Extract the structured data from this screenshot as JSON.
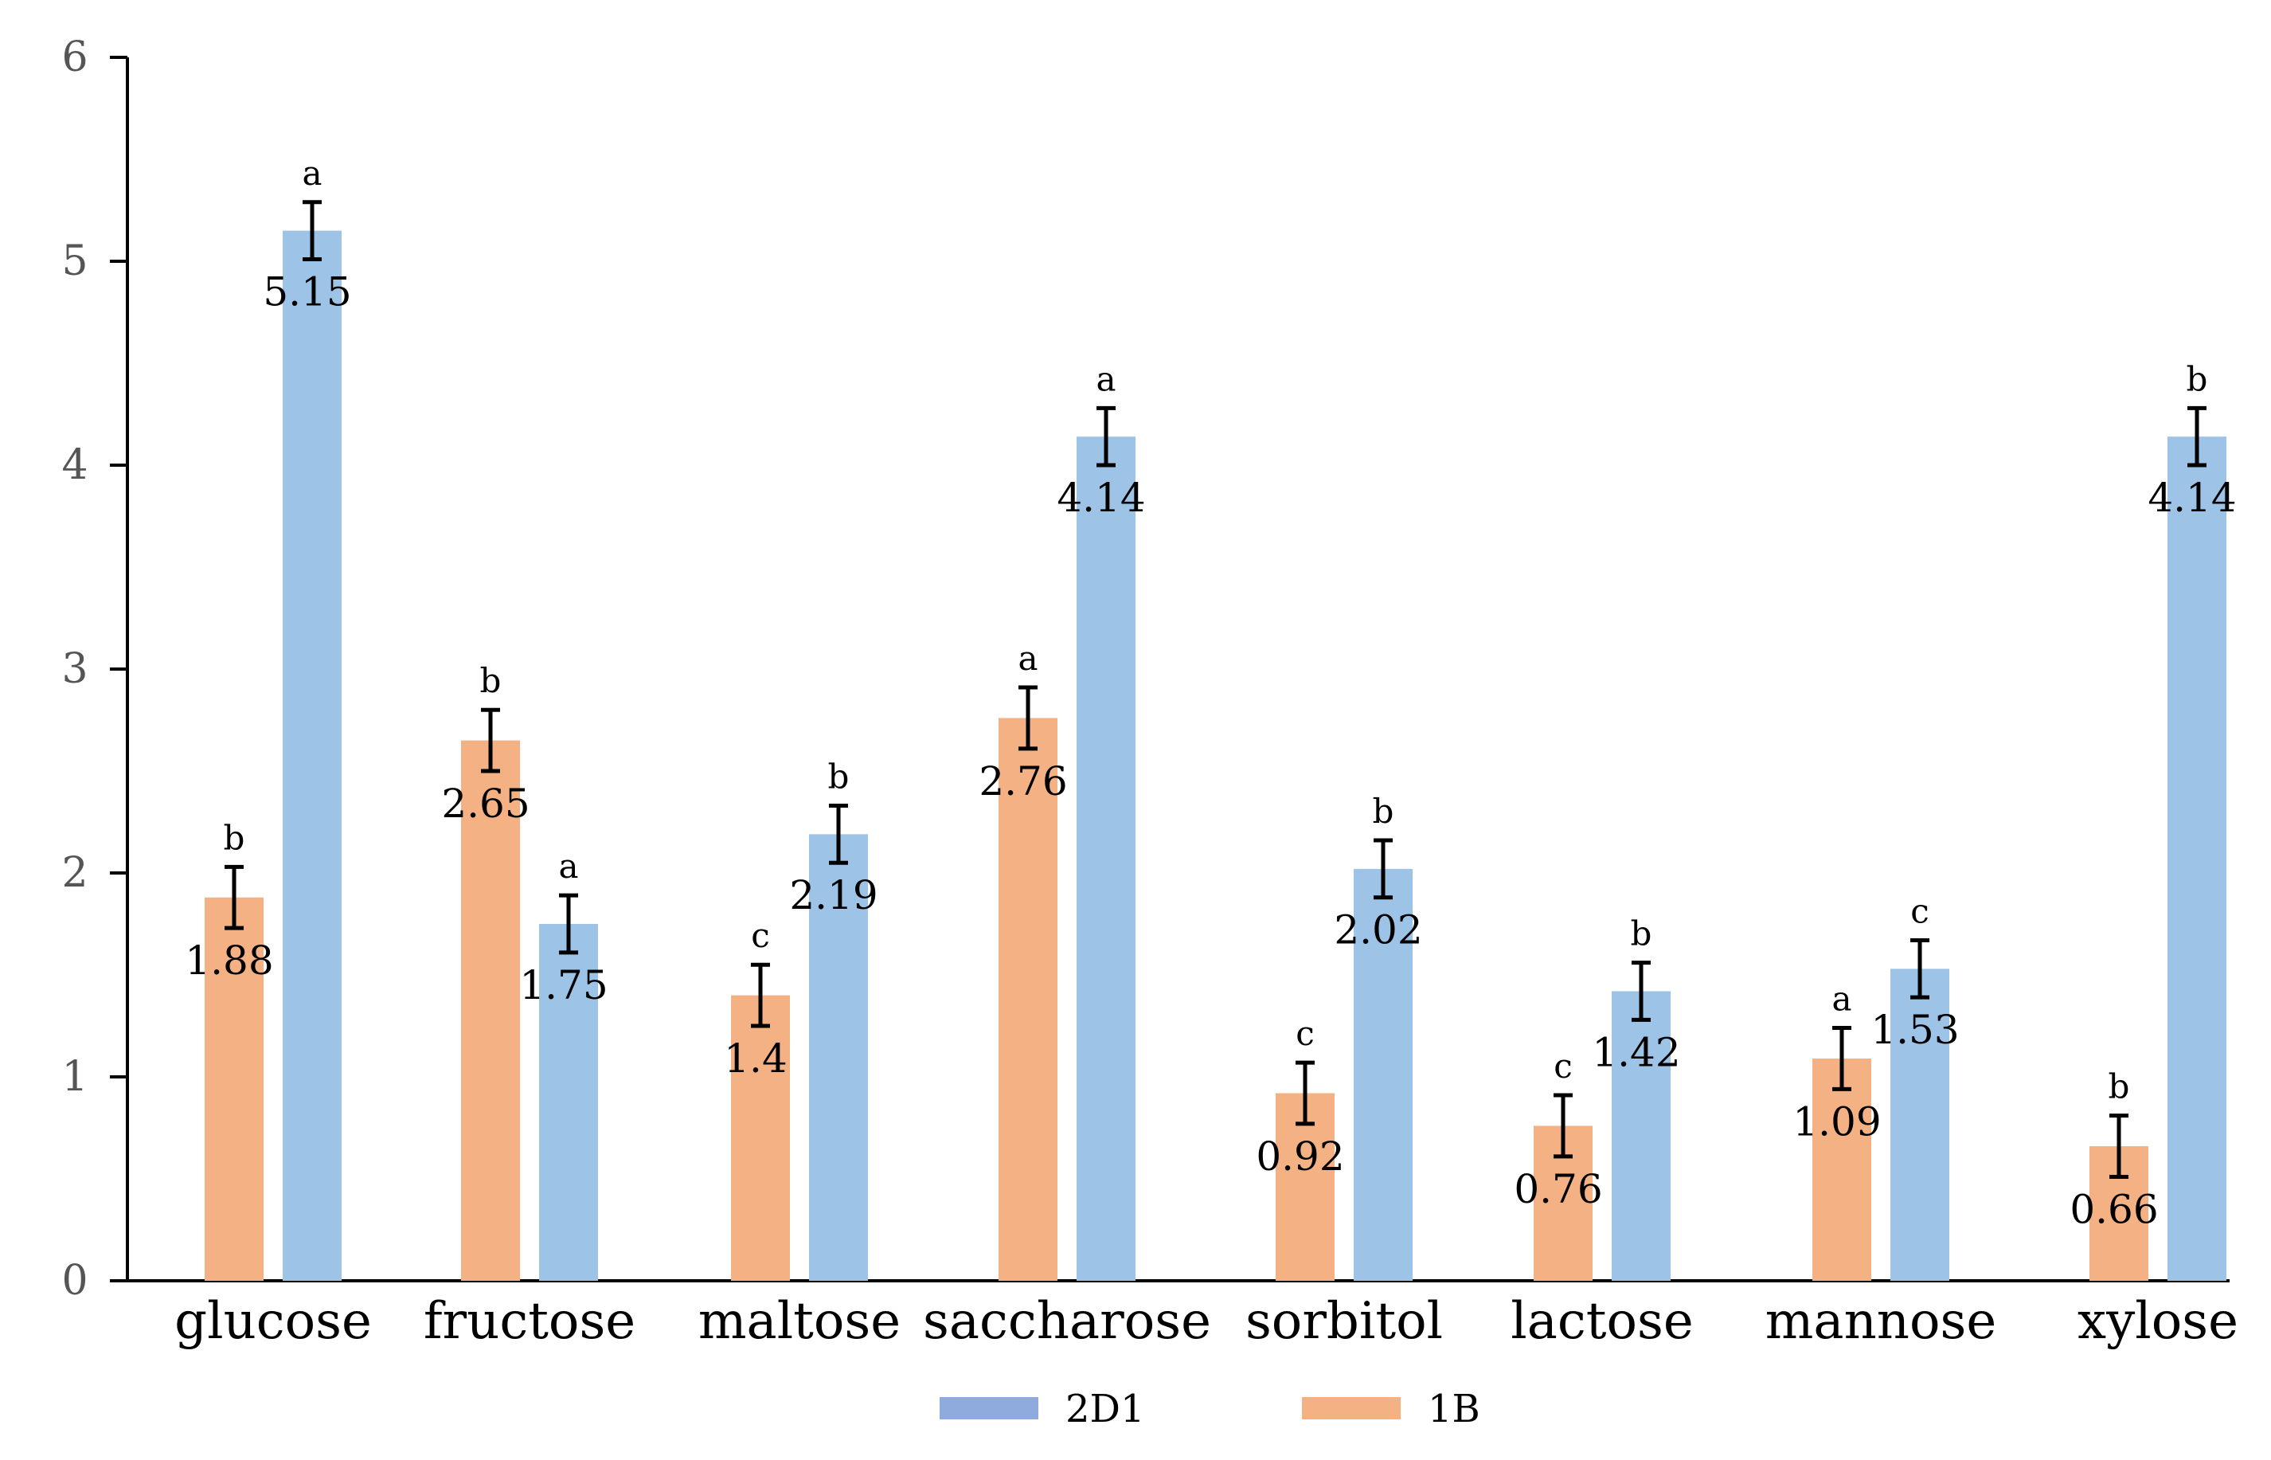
{
  "chart_data": {
    "type": "bar",
    "title": "",
    "xlabel": "",
    "ylabel": "",
    "ylim": [
      0,
      6
    ],
    "yticks": [
      0,
      1,
      2,
      3,
      4,
      5,
      6
    ],
    "grid": false,
    "legend_position": "bottom",
    "categories": [
      "glucose",
      "fructose",
      "maltose",
      "saccharose",
      "sorbitol",
      "lactose",
      "mannose",
      "xylose"
    ],
    "series": [
      {
        "name": "1B",
        "color": "#F4B183",
        "values": [
          1.88,
          2.65,
          1.4,
          2.76,
          0.92,
          0.76,
          1.09,
          0.66
        ],
        "value_labels": [
          "1.88",
          "2.65",
          "1.4",
          "2.76",
          "0.92",
          "0.76",
          "1.09",
          "0.66"
        ],
        "errors": [
          0.15,
          0.15,
          0.15,
          0.15,
          0.15,
          0.15,
          0.15,
          0.15
        ],
        "significance": [
          "b",
          "b",
          "c",
          "a",
          "c",
          "c",
          "a",
          "b"
        ]
      },
      {
        "name": "2D1",
        "color": "#9DC3E6",
        "values": [
          5.15,
          1.75,
          2.19,
          4.14,
          2.02,
          1.42,
          1.53,
          4.14
        ],
        "value_labels": [
          "5.15",
          "1.75",
          "2.19",
          "4.14",
          "2.02",
          "1.42",
          "1.53",
          "4.14"
        ],
        "errors": [
          0.14,
          0.14,
          0.14,
          0.14,
          0.14,
          0.14,
          0.14,
          0.14
        ],
        "significance": [
          "a",
          "a",
          "b",
          "a",
          "b",
          "b",
          "c",
          "b"
        ]
      }
    ],
    "legend": [
      {
        "name": "2D1",
        "color": "#8FAADC"
      },
      {
        "name": "1B",
        "color": "#F4B183"
      }
    ]
  }
}
